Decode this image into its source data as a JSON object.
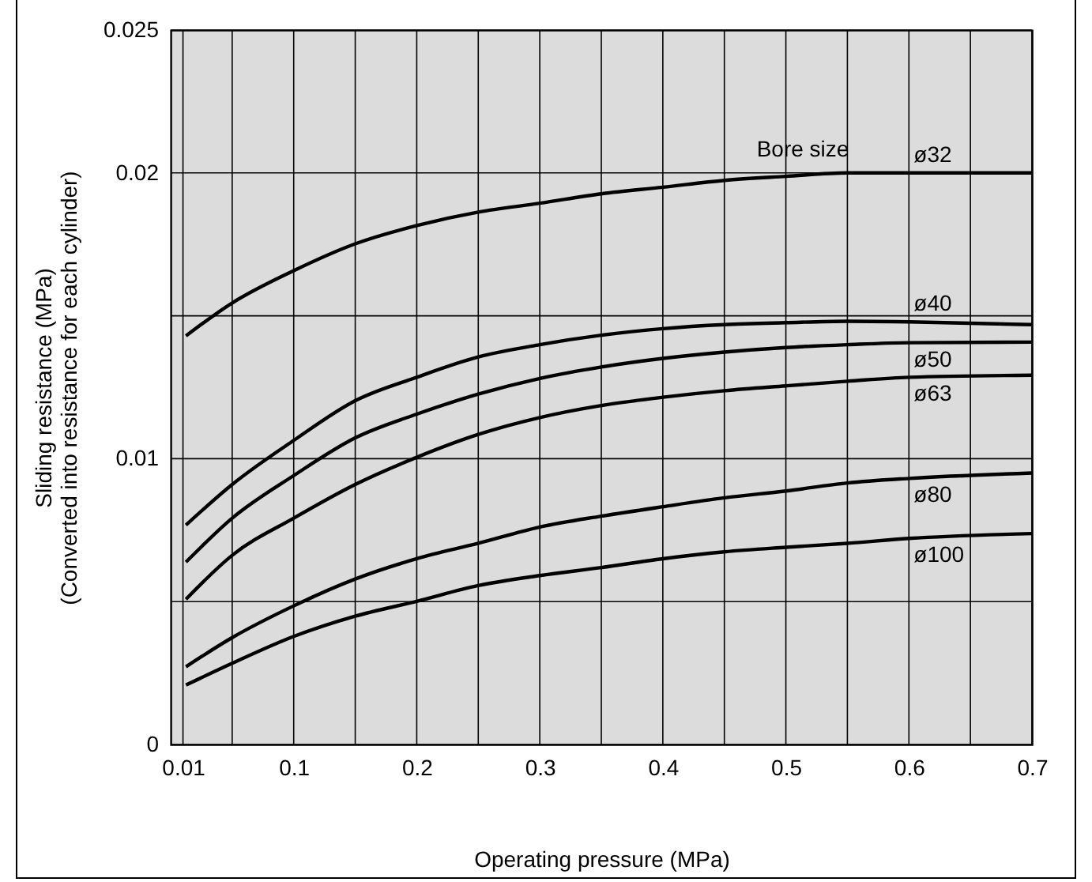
{
  "chart_data": {
    "type": "line",
    "xlabel": "Operating pressure (MPa)",
    "ylabel": "Sliding resistance (MPa)\n(Converted into resistance for each cylinder)",
    "x": [
      0.0124,
      0.05,
      0.1,
      0.15,
      0.2,
      0.25,
      0.3,
      0.35,
      0.4,
      0.45,
      0.5,
      0.55,
      0.6,
      0.7
    ],
    "series": [
      {
        "name": "ø32",
        "color": "#000000",
        "values": [
          0.0143,
          0.01545,
          0.01658,
          0.01752,
          0.01816,
          0.01863,
          0.01894,
          0.01927,
          0.0195,
          0.01974,
          0.01988,
          0.02,
          0.02,
          0.02
        ]
      },
      {
        "name": "ø40",
        "color": "#000000",
        "values": [
          0.00768,
          0.0091,
          0.01064,
          0.01203,
          0.01285,
          0.01356,
          0.01399,
          0.01432,
          0.01455,
          0.01469,
          0.01476,
          0.01481,
          0.01479,
          0.01469
        ]
      },
      {
        "name": "ø50",
        "color": "#000000",
        "values": [
          0.00638,
          0.00792,
          0.00941,
          0.01073,
          0.01156,
          0.01226,
          0.01281,
          0.01321,
          0.01351,
          0.01373,
          0.01389,
          0.01399,
          0.01406,
          0.01408
        ]
      },
      {
        "name": "ø63",
        "color": "#000000",
        "values": [
          0.00508,
          0.00662,
          0.00792,
          0.0091,
          0.01005,
          0.01085,
          0.01144,
          0.01186,
          0.01215,
          0.01238,
          0.01255,
          0.01271,
          0.01285,
          0.01292
        ]
      },
      {
        "name": "ø80",
        "color": "#000000",
        "values": [
          0.00272,
          0.00374,
          0.00485,
          0.00579,
          0.0065,
          0.00704,
          0.00761,
          0.00799,
          0.00832,
          0.00863,
          0.00887,
          0.00915,
          0.00931,
          0.0095
        ]
      },
      {
        "name": "ø100",
        "color": "#000000",
        "values": [
          0.00208,
          0.00284,
          0.00378,
          0.00449,
          0.00501,
          0.00556,
          0.00591,
          0.00619,
          0.0065,
          0.00674,
          0.0069,
          0.00704,
          0.00721,
          0.00738
        ]
      }
    ],
    "xlim": [
      0,
      0.7
    ],
    "xticks": [
      0.01,
      {
        "value": 0.05,
        "label": null
      },
      0.1,
      {
        "value": 0.15,
        "label": null
      },
      0.2,
      {
        "value": 0.25,
        "label": null
      },
      0.3,
      {
        "value": 0.35,
        "label": null
      },
      0.4,
      {
        "value": 0.45,
        "label": null
      },
      0.5,
      {
        "value": 0.55,
        "label": null
      },
      0.6,
      {
        "value": 0.65,
        "label": null
      },
      0.7
    ],
    "ylim": [
      0,
      0.025
    ],
    "yticks": [
      0,
      {
        "value": 0.005,
        "label": null
      },
      0.01,
      {
        "value": 0.015,
        "label": null
      },
      0.02,
      0.025
    ],
    "annotations": [
      "Bore size"
    ],
    "grid": true,
    "legend": false,
    "marker": "none",
    "line_style": "solid"
  }
}
